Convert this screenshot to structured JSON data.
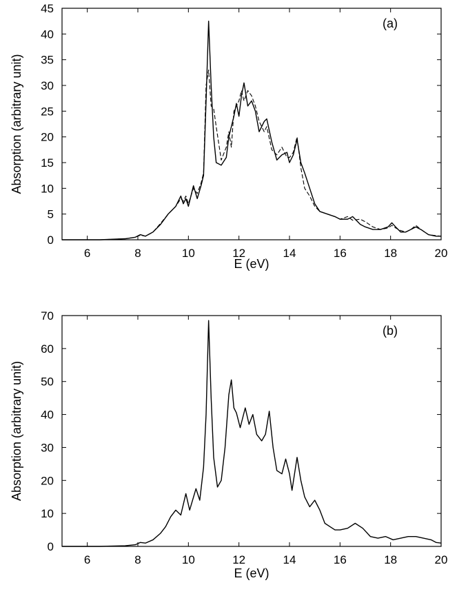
{
  "chart_data": [
    {
      "type": "line",
      "panel_label": "(a)",
      "xlabel": "E (eV)",
      "ylabel": "Absorption (arbitrary unit)",
      "xlim": [
        5,
        20
      ],
      "ylim": [
        0,
        45
      ],
      "xticks": [
        6,
        8,
        10,
        12,
        14,
        16,
        18,
        20
      ],
      "yticks": [
        0,
        5,
        10,
        15,
        20,
        25,
        30,
        35,
        40,
        45
      ],
      "grid": false,
      "legend": "none",
      "series": [
        {
          "style": "solid",
          "color": "#000000",
          "points": [
            [
              5,
              0
            ],
            [
              6.5,
              0
            ],
            [
              7.5,
              0.2
            ],
            [
              7.9,
              0.5
            ],
            [
              8.1,
              1.0
            ],
            [
              8.3,
              0.7
            ],
            [
              8.6,
              1.5
            ],
            [
              8.9,
              3.0
            ],
            [
              9.2,
              5.0
            ],
            [
              9.5,
              6.5
            ],
            [
              9.7,
              8.5
            ],
            [
              9.8,
              7.0
            ],
            [
              9.9,
              8.0
            ],
            [
              10.0,
              6.5
            ],
            [
              10.2,
              10.5
            ],
            [
              10.35,
              8.0
            ],
            [
              10.5,
              10.5
            ],
            [
              10.6,
              12.5
            ],
            [
              10.7,
              27.0
            ],
            [
              10.8,
              42.5
            ],
            [
              10.9,
              30.0
            ],
            [
              11.0,
              20.0
            ],
            [
              11.1,
              15.0
            ],
            [
              11.3,
              14.5
            ],
            [
              11.5,
              16.0
            ],
            [
              11.6,
              20.0
            ],
            [
              11.7,
              22.0
            ],
            [
              11.8,
              24.0
            ],
            [
              11.9,
              26.5
            ],
            [
              12.0,
              24.0
            ],
            [
              12.1,
              28.0
            ],
            [
              12.2,
              30.5
            ],
            [
              12.35,
              26.0
            ],
            [
              12.5,
              27.0
            ],
            [
              12.65,
              25.0
            ],
            [
              12.8,
              21.0
            ],
            [
              13.0,
              23.0
            ],
            [
              13.1,
              23.5
            ],
            [
              13.3,
              19.0
            ],
            [
              13.5,
              15.5
            ],
            [
              13.7,
              16.5
            ],
            [
              13.9,
              17.0
            ],
            [
              14.0,
              15.0
            ],
            [
              14.15,
              16.5
            ],
            [
              14.3,
              19.5
            ],
            [
              14.45,
              15.0
            ],
            [
              14.6,
              13.0
            ],
            [
              14.8,
              10.0
            ],
            [
              15.0,
              7.0
            ],
            [
              15.2,
              5.5
            ],
            [
              15.5,
              5.0
            ],
            [
              15.8,
              4.5
            ],
            [
              16.0,
              4.0
            ],
            [
              16.3,
              4.0
            ],
            [
              16.5,
              4.5
            ],
            [
              16.8,
              3.0
            ],
            [
              17.0,
              2.5
            ],
            [
              17.3,
              2.0
            ],
            [
              17.6,
              2.0
            ],
            [
              17.9,
              2.5
            ],
            [
              18.05,
              3.3
            ],
            [
              18.2,
              2.5
            ],
            [
              18.4,
              1.5
            ],
            [
              18.6,
              1.5
            ],
            [
              18.8,
              2.0
            ],
            [
              19.0,
              2.5
            ],
            [
              19.2,
              2.0
            ],
            [
              19.5,
              1.0
            ],
            [
              19.8,
              0.7
            ],
            [
              20.0,
              0.7
            ]
          ]
        },
        {
          "style": "dashed",
          "color": "#000000",
          "points": [
            [
              5,
              0
            ],
            [
              6.5,
              0
            ],
            [
              7.5,
              0.2
            ],
            [
              7.9,
              0.5
            ],
            [
              8.1,
              0.9
            ],
            [
              8.3,
              0.7
            ],
            [
              8.6,
              1.5
            ],
            [
              8.9,
              3.2
            ],
            [
              9.2,
              5.0
            ],
            [
              9.5,
              6.5
            ],
            [
              9.7,
              8.0
            ],
            [
              9.8,
              7.5
            ],
            [
              9.9,
              8.5
            ],
            [
              10.0,
              7.0
            ],
            [
              10.2,
              10.0
            ],
            [
              10.35,
              9.0
            ],
            [
              10.5,
              11.0
            ],
            [
              10.6,
              13.0
            ],
            [
              10.7,
              30.0
            ],
            [
              10.8,
              33.0
            ],
            [
              10.9,
              26.0
            ],
            [
              11.0,
              25.5
            ],
            [
              11.1,
              22.0
            ],
            [
              11.3,
              15.5
            ],
            [
              11.5,
              18.0
            ],
            [
              11.6,
              21.0
            ],
            [
              11.7,
              18.0
            ],
            [
              11.8,
              25.0
            ],
            [
              11.9,
              26.0
            ],
            [
              12.0,
              27.0
            ],
            [
              12.1,
              29.0
            ],
            [
              12.2,
              27.0
            ],
            [
              12.35,
              29.0
            ],
            [
              12.5,
              28.0
            ],
            [
              12.65,
              26.0
            ],
            [
              12.8,
              23.0
            ],
            [
              13.0,
              21.0
            ],
            [
              13.1,
              22.0
            ],
            [
              13.3,
              17.5
            ],
            [
              13.5,
              16.5
            ],
            [
              13.7,
              18.0
            ],
            [
              13.9,
              16.0
            ],
            [
              14.0,
              16.0
            ],
            [
              14.15,
              17.0
            ],
            [
              14.3,
              20.0
            ],
            [
              14.45,
              14.0
            ],
            [
              14.6,
              10.0
            ],
            [
              14.8,
              8.5
            ],
            [
              15.0,
              6.5
            ],
            [
              15.2,
              5.5
            ],
            [
              15.5,
              5.0
            ],
            [
              15.8,
              4.5
            ],
            [
              16.0,
              4.0
            ],
            [
              16.3,
              4.5
            ],
            [
              16.5,
              3.8
            ],
            [
              16.8,
              4.0
            ],
            [
              17.0,
              3.5
            ],
            [
              17.3,
              2.5
            ],
            [
              17.6,
              2.0
            ],
            [
              17.9,
              2.3
            ],
            [
              18.05,
              2.8
            ],
            [
              18.2,
              2.3
            ],
            [
              18.4,
              1.8
            ],
            [
              18.6,
              1.5
            ],
            [
              18.8,
              2.0
            ],
            [
              19.0,
              2.8
            ],
            [
              19.2,
              2.0
            ],
            [
              19.5,
              1.0
            ],
            [
              19.8,
              0.8
            ],
            [
              20.0,
              0.7
            ]
          ]
        }
      ]
    },
    {
      "type": "line",
      "panel_label": "(b)",
      "xlabel": "E (eV)",
      "ylabel": "Absorption (arbitrary unit)",
      "xlim": [
        5,
        20
      ],
      "ylim": [
        0,
        70
      ],
      "xticks": [
        6,
        8,
        10,
        12,
        14,
        16,
        18,
        20
      ],
      "yticks": [
        0,
        10,
        20,
        30,
        40,
        50,
        60,
        70
      ],
      "grid": false,
      "legend": "none",
      "series": [
        {
          "style": "solid",
          "color": "#000000",
          "points": [
            [
              5,
              0
            ],
            [
              6.5,
              0
            ],
            [
              7.5,
              0.2
            ],
            [
              7.9,
              0.5
            ],
            [
              8.1,
              1.2
            ],
            [
              8.3,
              1.0
            ],
            [
              8.6,
              2.0
            ],
            [
              8.9,
              4.0
            ],
            [
              9.1,
              6.0
            ],
            [
              9.3,
              9.0
            ],
            [
              9.5,
              11.0
            ],
            [
              9.7,
              9.5
            ],
            [
              9.9,
              16.0
            ],
            [
              10.05,
              11.0
            ],
            [
              10.3,
              17.5
            ],
            [
              10.45,
              14.0
            ],
            [
              10.6,
              24.0
            ],
            [
              10.7,
              40.0
            ],
            [
              10.8,
              68.5
            ],
            [
              10.9,
              45.0
            ],
            [
              11.0,
              27.0
            ],
            [
              11.15,
              18.0
            ],
            [
              11.3,
              20.0
            ],
            [
              11.45,
              30.0
            ],
            [
              11.6,
              46.0
            ],
            [
              11.7,
              50.5
            ],
            [
              11.8,
              42.0
            ],
            [
              11.9,
              40.5
            ],
            [
              12.05,
              36.0
            ],
            [
              12.25,
              42.0
            ],
            [
              12.4,
              37.0
            ],
            [
              12.55,
              40.0
            ],
            [
              12.7,
              34.0
            ],
            [
              12.9,
              32.0
            ],
            [
              13.05,
              34.0
            ],
            [
              13.2,
              41.0
            ],
            [
              13.35,
              30.0
            ],
            [
              13.5,
              23.0
            ],
            [
              13.7,
              22.0
            ],
            [
              13.85,
              26.5
            ],
            [
              14.0,
              22.0
            ],
            [
              14.1,
              17.0
            ],
            [
              14.3,
              27.0
            ],
            [
              14.45,
              20.0
            ],
            [
              14.6,
              15.0
            ],
            [
              14.8,
              12.0
            ],
            [
              15.0,
              14.0
            ],
            [
              15.2,
              11.0
            ],
            [
              15.4,
              7.0
            ],
            [
              15.6,
              6.0
            ],
            [
              15.8,
              5.0
            ],
            [
              16.0,
              5.0
            ],
            [
              16.3,
              5.5
            ],
            [
              16.6,
              7.0
            ],
            [
              16.9,
              5.5
            ],
            [
              17.2,
              3.0
            ],
            [
              17.5,
              2.5
            ],
            [
              17.8,
              3.0
            ],
            [
              18.1,
              2.0
            ],
            [
              18.4,
              2.5
            ],
            [
              18.7,
              3.0
            ],
            [
              19.0,
              3.0
            ],
            [
              19.3,
              2.5
            ],
            [
              19.6,
              2.0
            ],
            [
              19.8,
              1.2
            ],
            [
              20.0,
              1.0
            ]
          ]
        }
      ]
    }
  ]
}
